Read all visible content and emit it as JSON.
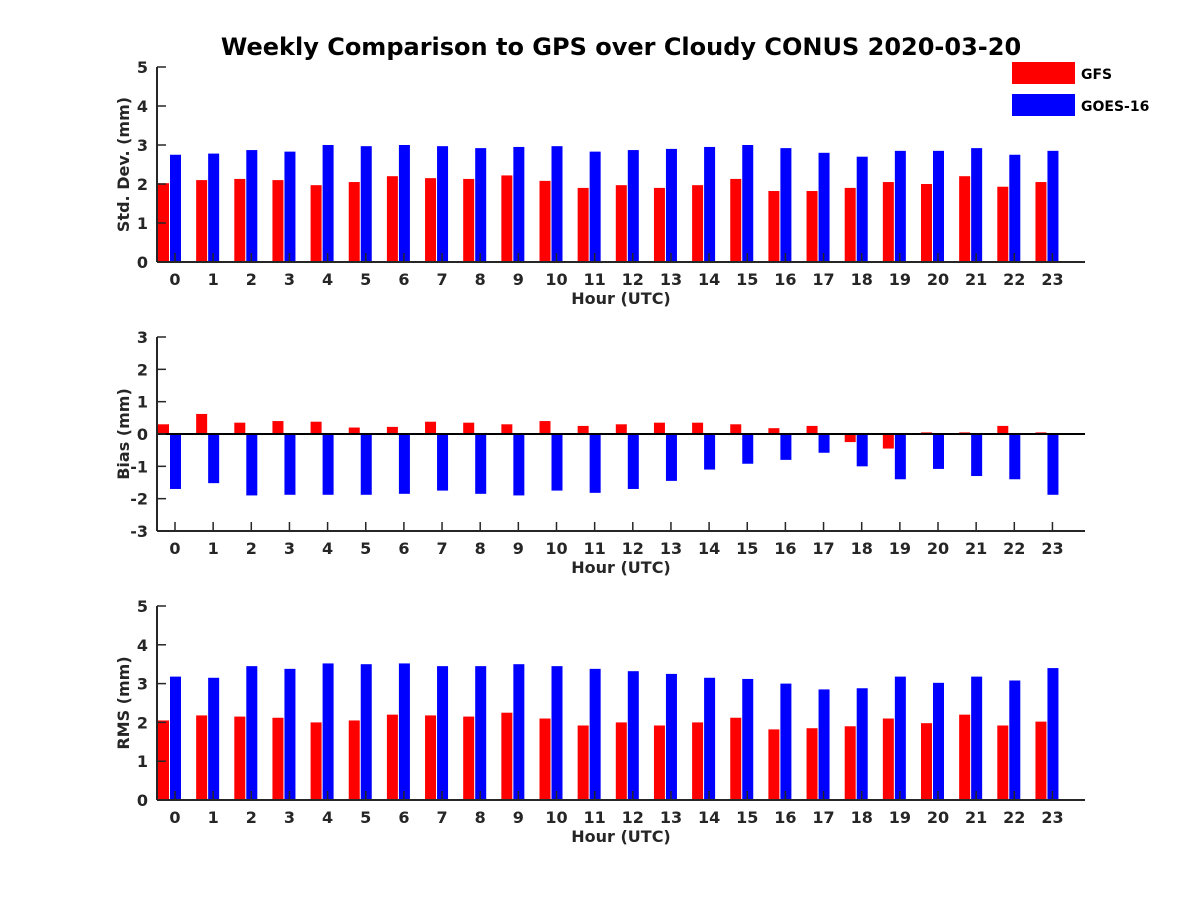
{
  "title": "Weekly Comparison to GPS over Cloudy CONUS 2020-03-20",
  "legend": [
    {
      "name": "GFS",
      "color": "#ff0000"
    },
    {
      "name": "GOES-16",
      "color": "#0000ff"
    }
  ],
  "chart_data": [
    {
      "type": "bar",
      "ylabel": "Std. Dev. (mm)",
      "xlabel": "Hour (UTC)",
      "ylim": [
        0,
        5
      ],
      "yticks": [
        0,
        1,
        2,
        3,
        4,
        5
      ],
      "categories": [
        "0",
        "1",
        "2",
        "3",
        "4",
        "5",
        "6",
        "7",
        "8",
        "9",
        "10",
        "11",
        "12",
        "13",
        "14",
        "15",
        "16",
        "17",
        "18",
        "19",
        "20",
        "21",
        "22",
        "23"
      ],
      "series": [
        {
          "name": "GFS",
          "color": "#ff0000",
          "values": [
            2.02,
            2.1,
            2.13,
            2.1,
            1.97,
            2.05,
            2.2,
            2.15,
            2.13,
            2.22,
            2.08,
            1.9,
            1.97,
            1.9,
            1.97,
            2.13,
            1.82,
            1.82,
            1.9,
            2.05,
            2.0,
            2.2,
            1.93,
            2.05
          ]
        },
        {
          "name": "GOES-16",
          "color": "#0000ff",
          "values": [
            2.75,
            2.78,
            2.87,
            2.83,
            3.0,
            2.97,
            3.0,
            2.97,
            2.92,
            2.95,
            2.97,
            2.83,
            2.87,
            2.9,
            2.95,
            3.0,
            2.92,
            2.8,
            2.7,
            2.85,
            2.85,
            2.92,
            2.75,
            2.85
          ]
        }
      ]
    },
    {
      "type": "bar",
      "ylabel": "Bias (mm)",
      "xlabel": "Hour (UTC)",
      "ylim": [
        -3,
        3
      ],
      "yticks": [
        -3,
        -2,
        -1,
        0,
        1,
        2,
        3
      ],
      "zero_line": true,
      "categories": [
        "0",
        "1",
        "2",
        "3",
        "4",
        "5",
        "6",
        "7",
        "8",
        "9",
        "10",
        "11",
        "12",
        "13",
        "14",
        "15",
        "16",
        "17",
        "18",
        "19",
        "20",
        "21",
        "22",
        "23"
      ],
      "series": [
        {
          "name": "GFS",
          "color": "#ff0000",
          "values": [
            0.3,
            0.62,
            0.35,
            0.4,
            0.38,
            0.2,
            0.22,
            0.38,
            0.35,
            0.3,
            0.4,
            0.25,
            0.3,
            0.35,
            0.35,
            0.3,
            0.18,
            0.25,
            -0.25,
            -0.45,
            0.05,
            0.05,
            0.25,
            0.05
          ]
        },
        {
          "name": "GOES-16",
          "color": "#0000ff",
          "values": [
            -1.7,
            -1.52,
            -1.9,
            -1.88,
            -1.88,
            -1.88,
            -1.85,
            -1.75,
            -1.85,
            -1.9,
            -1.75,
            -1.82,
            -1.7,
            -1.45,
            -1.1,
            -0.92,
            -0.8,
            -0.58,
            -1.0,
            -1.4,
            -1.08,
            -1.3,
            -1.4,
            -1.88
          ]
        }
      ]
    },
    {
      "type": "bar",
      "ylabel": "RMS (mm)",
      "xlabel": "Hour (UTC)",
      "ylim": [
        0,
        5
      ],
      "yticks": [
        0,
        1,
        2,
        3,
        4,
        5
      ],
      "categories": [
        "0",
        "1",
        "2",
        "3",
        "4",
        "5",
        "6",
        "7",
        "8",
        "9",
        "10",
        "11",
        "12",
        "13",
        "14",
        "15",
        "16",
        "17",
        "18",
        "19",
        "20",
        "21",
        "22",
        "23"
      ],
      "series": [
        {
          "name": "GFS",
          "color": "#ff0000",
          "values": [
            2.05,
            2.18,
            2.15,
            2.12,
            2.0,
            2.05,
            2.2,
            2.18,
            2.15,
            2.25,
            2.1,
            1.92,
            2.0,
            1.92,
            2.0,
            2.12,
            1.82,
            1.85,
            1.9,
            2.1,
            1.98,
            2.2,
            1.92,
            2.02
          ]
        },
        {
          "name": "GOES-16",
          "color": "#0000ff",
          "values": [
            3.18,
            3.15,
            3.45,
            3.38,
            3.52,
            3.5,
            3.52,
            3.45,
            3.45,
            3.5,
            3.45,
            3.38,
            3.32,
            3.25,
            3.15,
            3.12,
            3.0,
            2.85,
            2.88,
            3.18,
            3.02,
            3.18,
            3.08,
            3.4
          ]
        }
      ]
    }
  ]
}
